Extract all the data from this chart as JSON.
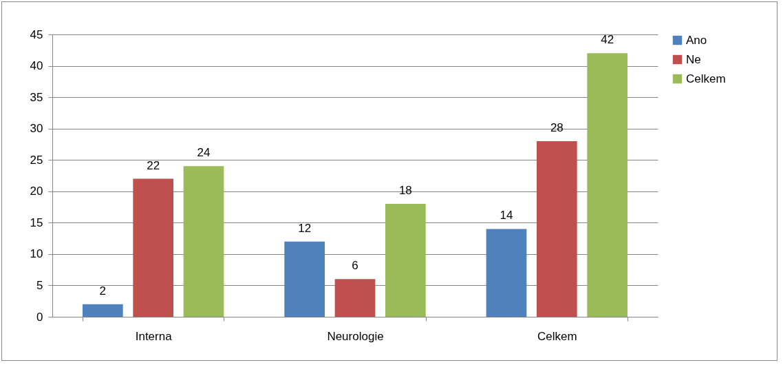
{
  "chart_data": {
    "type": "bar",
    "categories": [
      "Interna",
      "Neurologie",
      "Celkem"
    ],
    "series": [
      {
        "name": "Ano",
        "color": "#4f81bd",
        "values": [
          2,
          12,
          14
        ]
      },
      {
        "name": "Ne",
        "color": "#c0504d",
        "values": [
          22,
          6,
          28
        ]
      },
      {
        "name": "Celkem",
        "color": "#9bbb59",
        "values": [
          24,
          18,
          42
        ]
      }
    ],
    "ylim": [
      0,
      45
    ],
    "yticks": [
      0,
      5,
      10,
      15,
      20,
      25,
      30,
      35,
      40,
      45
    ],
    "grid": "y",
    "legend": "right",
    "data_labels": true
  }
}
